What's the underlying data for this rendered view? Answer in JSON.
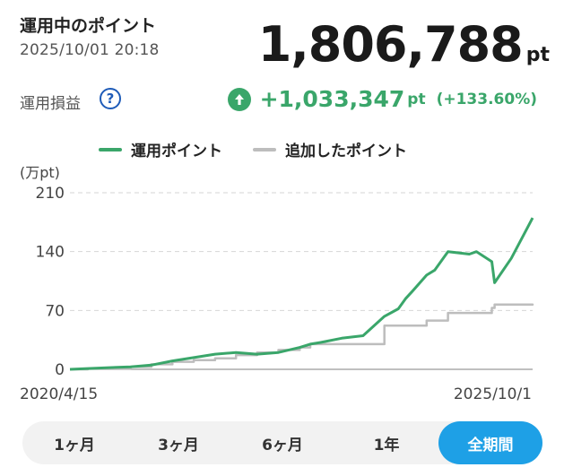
{
  "header": {
    "title": "運用中のポイント",
    "datetime": "2025/10/01 20:18",
    "points_value": "1,806,788",
    "points_unit": "pt"
  },
  "profit": {
    "label": "運用損益",
    "help_glyph": "?",
    "gain_value": "+1,033,347",
    "gain_unit": "pt",
    "gain_percent": "(+133.60%)"
  },
  "legend": [
    {
      "name": "運用ポイント",
      "color": "#3aa66a"
    },
    {
      "name": "追加したポイント",
      "color": "#bdbdbd"
    }
  ],
  "chart_data": {
    "type": "line",
    "ylabel": "(万pt)",
    "yticks": [
      "210",
      "140",
      "70",
      "0"
    ],
    "ylim": [
      0,
      210
    ],
    "x_start_label": "2020/4/15",
    "x_end_label": "2025/10/1",
    "x": [
      "2020-04-15",
      "2020-07-01",
      "2020-10-01",
      "2021-01-01",
      "2021-04-01",
      "2021-07-01",
      "2021-10-01",
      "2022-01-01",
      "2022-04-01",
      "2022-07-01",
      "2022-10-01",
      "2023-01-01",
      "2023-02-15",
      "2023-04-01",
      "2023-07-01",
      "2023-10-01",
      "2024-01-01",
      "2024-03-01",
      "2024-04-01",
      "2024-05-01",
      "2024-07-01",
      "2024-08-05",
      "2024-10-01",
      "2025-01-01",
      "2025-02-01",
      "2025-04-08",
      "2025-04-20",
      "2025-07-01",
      "2025-10-01"
    ],
    "series": [
      {
        "name": "運用ポイント",
        "color": "#3aa66a",
        "values": [
          0,
          1,
          2,
          3,
          5,
          10,
          14,
          18,
          20,
          18,
          20,
          26,
          30,
          32,
          37,
          40,
          63,
          72,
          84,
          93,
          112,
          118,
          140,
          137,
          140,
          128,
          103,
          132,
          180
        ]
      },
      {
        "name": "追加したポイント",
        "color": "#bdbdbd",
        "values": [
          0,
          1,
          1,
          3,
          6,
          9,
          11,
          13,
          17,
          20,
          23,
          26,
          30,
          30,
          30,
          30,
          52,
          52,
          52,
          52,
          58,
          58,
          67,
          67,
          67,
          73,
          77,
          77,
          77
        ]
      }
    ]
  },
  "tabs": [
    {
      "label": "1ヶ月",
      "active": false
    },
    {
      "label": "3ヶ月",
      "active": false
    },
    {
      "label": "6ヶ月",
      "active": false
    },
    {
      "label": "1年",
      "active": false
    },
    {
      "label": "全期間",
      "active": true
    }
  ]
}
